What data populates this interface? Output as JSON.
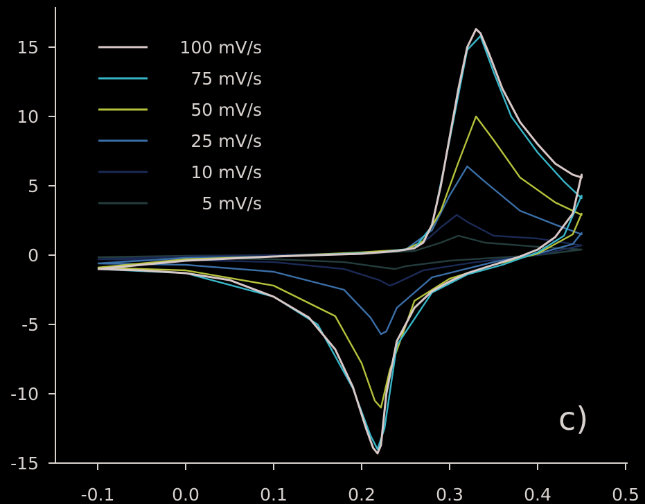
{
  "chart_data": {
    "type": "line",
    "title": "",
    "xlabel": "",
    "ylabel": "",
    "xlim": [
      -0.15,
      0.5
    ],
    "ylim": [
      -15,
      17
    ],
    "xticks": [
      "-0.1",
      "0.0",
      "0.1",
      "0.2",
      "0.3",
      "0.4",
      "0.5"
    ],
    "yticks": [
      "15",
      "10",
      "5",
      "0",
      "-5",
      "-10",
      "-15"
    ],
    "xtick_values": [
      -0.1,
      0.0,
      0.1,
      0.2,
      0.3,
      0.4,
      0.5
    ],
    "ytick_values": [
      15,
      10,
      5,
      0,
      -5,
      -10,
      -15
    ],
    "grid": false,
    "legend_placement": "top-left",
    "panel_label": "c)",
    "colors": {
      "axis": "#d8d2cf",
      "background": "#000000"
    },
    "series": [
      {
        "name": "100 mV/s",
        "color": "#d8c8c8",
        "x": [
          -0.1,
          -0.05,
          0.0,
          0.05,
          0.1,
          0.14,
          0.17,
          0.19,
          0.205,
          0.213,
          0.218,
          0.222,
          0.228,
          0.24,
          0.26,
          0.28,
          0.3,
          0.32,
          0.35,
          0.38,
          0.4,
          0.42,
          0.44,
          0.45,
          0.45,
          0.44,
          0.42,
          0.4,
          0.38,
          0.36,
          0.345,
          0.335,
          0.33,
          0.32,
          0.31,
          0.3,
          0.29,
          0.28,
          0.27,
          0.26,
          0.24,
          0.2,
          0.1,
          0.0,
          -0.1
        ],
        "y": [
          -1.0,
          -1.1,
          -1.3,
          -1.8,
          -3.0,
          -4.5,
          -6.8,
          -9.5,
          -12.5,
          -13.9,
          -14.3,
          -13.7,
          -10.0,
          -6.2,
          -3.8,
          -2.6,
          -1.9,
          -1.3,
          -0.7,
          -0.1,
          0.4,
          1.3,
          3.0,
          5.8,
          5.6,
          5.8,
          6.6,
          8.0,
          9.6,
          12.0,
          14.5,
          16.0,
          16.3,
          15.0,
          12.0,
          8.5,
          5.0,
          2.2,
          0.9,
          0.5,
          0.3,
          0.1,
          -0.1,
          -0.4,
          -1.0
        ]
      },
      {
        "name": "75 mV/s",
        "color": "#38b6c8",
        "x": [
          -0.1,
          0.0,
          0.1,
          0.15,
          0.19,
          0.21,
          0.218,
          0.226,
          0.24,
          0.28,
          0.32,
          0.36,
          0.4,
          0.43,
          0.45,
          0.45,
          0.43,
          0.4,
          0.37,
          0.35,
          0.335,
          0.32,
          0.3,
          0.28,
          0.26,
          0.22,
          0.1,
          0.0,
          -0.1
        ],
        "y": [
          -1.0,
          -1.3,
          -3.0,
          -5.0,
          -9.6,
          -13.0,
          -14.0,
          -12.5,
          -6.5,
          -2.7,
          -1.4,
          -0.7,
          0.2,
          1.4,
          4.3,
          4.1,
          5.3,
          7.4,
          10.0,
          13.2,
          15.8,
          14.8,
          8.3,
          2.1,
          0.5,
          0.2,
          -0.1,
          -0.4,
          -1.0
        ]
      },
      {
        "name": "50 mV/s",
        "color": "#b5c23c",
        "x": [
          -0.1,
          0.0,
          0.1,
          0.17,
          0.2,
          0.215,
          0.222,
          0.232,
          0.26,
          0.3,
          0.35,
          0.4,
          0.44,
          0.45,
          0.45,
          0.42,
          0.38,
          0.35,
          0.33,
          0.31,
          0.29,
          0.27,
          0.25,
          0.2,
          0.1,
          0.0,
          -0.1
        ],
        "y": [
          -0.9,
          -1.1,
          -2.2,
          -4.4,
          -7.8,
          -10.5,
          -11.0,
          -8.3,
          -3.3,
          -1.7,
          -0.7,
          0.1,
          1.5,
          3.0,
          2.9,
          3.8,
          5.6,
          8.3,
          10.0,
          6.7,
          3.2,
          1.0,
          0.4,
          0.2,
          -0.1,
          -0.3,
          -0.9
        ]
      },
      {
        "name": "25 mV/s",
        "color": "#3b6fa8",
        "x": [
          -0.1,
          0.0,
          0.1,
          0.18,
          0.21,
          0.222,
          0.228,
          0.24,
          0.28,
          0.35,
          0.4,
          0.44,
          0.45,
          0.45,
          0.42,
          0.38,
          0.34,
          0.32,
          0.3,
          0.28,
          0.25,
          0.2,
          0.1,
          0.0,
          -0.1
        ],
        "y": [
          -0.6,
          -0.7,
          -1.2,
          -2.5,
          -4.5,
          -5.7,
          -5.5,
          -3.8,
          -1.6,
          -0.5,
          0.1,
          0.8,
          1.6,
          1.5,
          2.2,
          3.2,
          5.3,
          6.4,
          4.3,
          1.8,
          0.4,
          0.1,
          -0.1,
          -0.2,
          -0.6
        ]
      },
      {
        "name": "10 mV/s",
        "color": "#1b2a55",
        "x": [
          -0.1,
          0.0,
          0.1,
          0.18,
          0.22,
          0.232,
          0.24,
          0.27,
          0.33,
          0.4,
          0.45,
          0.45,
          0.4,
          0.35,
          0.32,
          0.308,
          0.29,
          0.27,
          0.25,
          0.2,
          0.1,
          0.0,
          -0.1
        ],
        "y": [
          -0.3,
          -0.35,
          -0.5,
          -1.0,
          -1.8,
          -2.2,
          -2.0,
          -1.1,
          -0.5,
          0.0,
          0.7,
          0.7,
          1.2,
          1.4,
          2.4,
          2.9,
          2.0,
          0.9,
          0.4,
          0.15,
          0.0,
          -0.1,
          -0.3
        ]
      },
      {
        "name": "5 mV/s",
        "color": "#243c3c",
        "x": [
          -0.1,
          0.0,
          0.1,
          0.18,
          0.225,
          0.238,
          0.25,
          0.3,
          0.4,
          0.45,
          0.45,
          0.4,
          0.34,
          0.31,
          0.29,
          0.26,
          0.2,
          0.1,
          0.0,
          -0.1
        ],
        "y": [
          -0.15,
          -0.2,
          -0.3,
          -0.5,
          -0.9,
          -1.0,
          -0.8,
          -0.4,
          0.0,
          0.4,
          0.4,
          0.6,
          0.9,
          1.4,
          0.9,
          0.3,
          0.1,
          0.0,
          -0.05,
          -0.15
        ]
      }
    ]
  }
}
